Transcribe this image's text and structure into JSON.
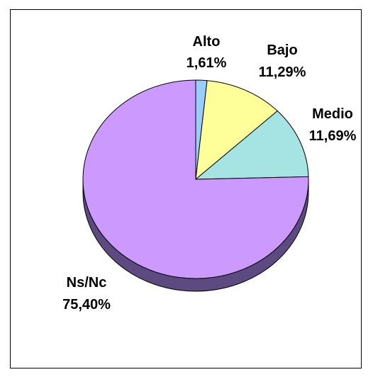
{
  "chart_data": {
    "type": "pie",
    "style": "3d",
    "slices": [
      {
        "name": "Alto",
        "value": 1.61,
        "label": "1,61%",
        "color": "#99CCFF",
        "side_color": "#5C7A99"
      },
      {
        "name": "Bajo",
        "value": 11.29,
        "label": "11,29%",
        "color": "#FFFF99",
        "side_color": "#99995C"
      },
      {
        "name": "Medio",
        "value": 11.69,
        "label": "11,69%",
        "color": "#A6E3E3",
        "side_color": "#648888"
      },
      {
        "name": "Ns/Nc",
        "value": 75.4,
        "label": "75,40%",
        "color": "#CC99FF",
        "side_color": "#5C4A80"
      }
    ],
    "start_angle_deg": 90,
    "direction": "clockwise",
    "legend": "none"
  }
}
